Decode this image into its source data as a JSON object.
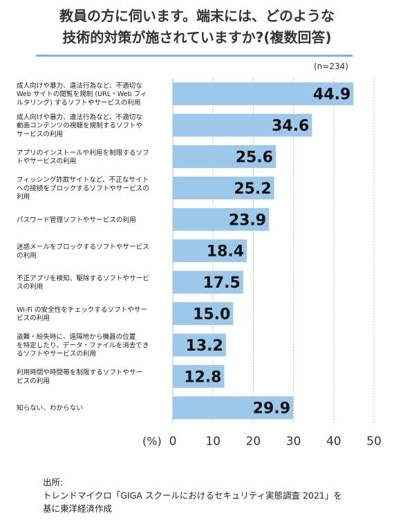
{
  "title": {
    "line1": "教員の方に伺います。端末には、どのような",
    "line2": "技術的対策が施されていますか?(複数回答)"
  },
  "sample_note": "(n=234)",
  "colors": {
    "bar": "#9dc8ea",
    "rule": "#7db0dc",
    "grid": "#bbbbbb"
  },
  "chart_data": {
    "type": "bar",
    "orientation": "horizontal",
    "categories": [
      [
        "成人向けや暴力、違法行為など、不適切な",
        "Web サイトの閲覧を規制 (URL・Web フィ",
        "ルタリング) するソフトやサービスの利用"
      ],
      [
        "成人向けや暴力、違法行為など、不適切な",
        "動画コンテンツの視聴を規制するソフトや",
        "サービスの利用"
      ],
      [
        "アプリのインストールや利用を制限するソフ",
        "トやサービスの利用"
      ],
      [
        "フィッシング詐欺サイトなど、不正なサイト",
        "への接続をブロックするソフトやサービスの",
        "利用"
      ],
      [
        "パスワード管理ソフトやサービスの利用"
      ],
      [
        "迷惑メールをブロックするソフトやサービス",
        "の利用"
      ],
      [
        "不正アプリを検知、駆除するソフトやサービ",
        "スの利用"
      ],
      [
        "Wi-Fi の安全性をチェックするソフトやサー",
        "ビスの利用"
      ],
      [
        "盗難・紛失時に、遠隔地から機器の位置",
        "を特定したり、データ・ファイルを消去でき",
        "るソフトやサービスの利用"
      ],
      [
        "利用時間や時間帯を制限するソフトやサー",
        "ビスの利用"
      ],
      [
        "知らない、わからない"
      ]
    ],
    "values": [
      44.9,
      34.6,
      25.6,
      25.2,
      23.9,
      18.4,
      17.5,
      15.0,
      13.2,
      12.8,
      29.9
    ],
    "value_labels": [
      "44.9",
      "34.6",
      "25.6",
      "25.2",
      "23.9",
      "18.4",
      "17.5",
      "15.0",
      "13.2",
      "12.8",
      "29.9"
    ],
    "xlabel": "(%)",
    "xlim": [
      0,
      50
    ],
    "xticks": [
      "0",
      "10",
      "20",
      "30",
      "40",
      "50"
    ],
    "grid": true
  },
  "source": {
    "line1": "出所:",
    "line2": "トレンドマイクロ「GIGA スクールにおけるセキュリティ実態調査 2021」を",
    "line3": "基に東洋経済作成"
  }
}
